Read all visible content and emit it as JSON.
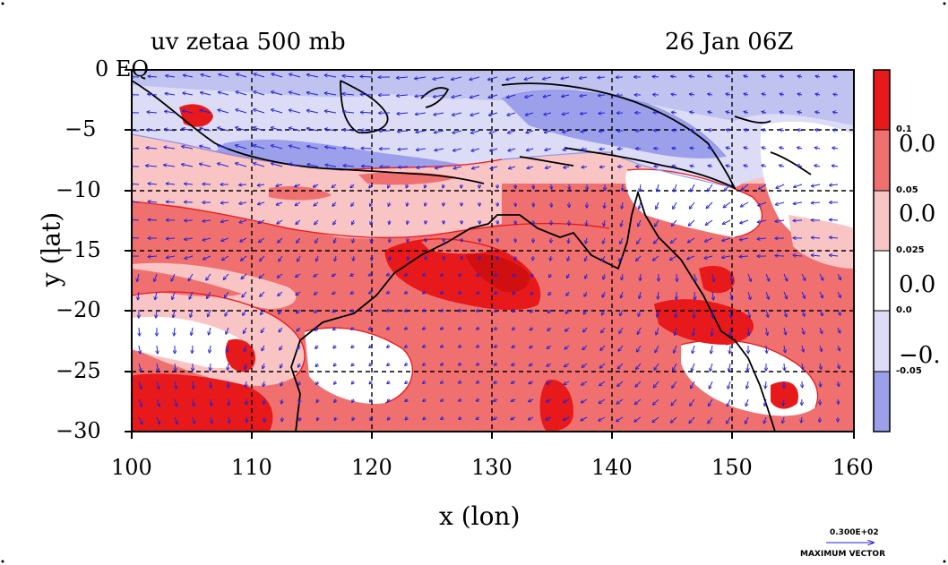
{
  "title_left": "uv zetaa 500 mb",
  "title_right": "26 Jan 06Z",
  "xlabel": "x (lon)",
  "ylabel": "y (lat)",
  "x_ticks": [
    "100",
    "110",
    "120",
    "130",
    "140",
    "150",
    "160"
  ],
  "y_ticks": [
    "0 EQ",
    "−5",
    "−10",
    "−15",
    "−20",
    "−25",
    "−30"
  ],
  "x_range": [
    100,
    160
  ],
  "y_range": [
    -30,
    0
  ],
  "colorbar": {
    "labels_small": [
      "0.1",
      "0.05",
      "0.025",
      "0.0",
      "-0.05"
    ],
    "labels_big": [
      "0.0",
      "0.0",
      "0.0",
      "−0."
    ],
    "colors": [
      "#e8191b",
      "#f07070",
      "#f9c4c4",
      "#ffffff",
      "#dcdcf6",
      "#9ca0ea"
    ]
  },
  "vector_legend": {
    "value": "0.300E+02",
    "caption": "MAXIMUM VECTOR"
  },
  "colors": {
    "strong_pos": "#e8191b",
    "mod_pos": "#f07070",
    "weak_pos": "#f9c4c4",
    "weak_neg": "#dcdcf6",
    "strong_neg": "#9ca0ea",
    "contour_red": "#e8191b",
    "contour_blue": "#8f94e8",
    "vectors": "#2323d8",
    "coast": "#000000"
  }
}
